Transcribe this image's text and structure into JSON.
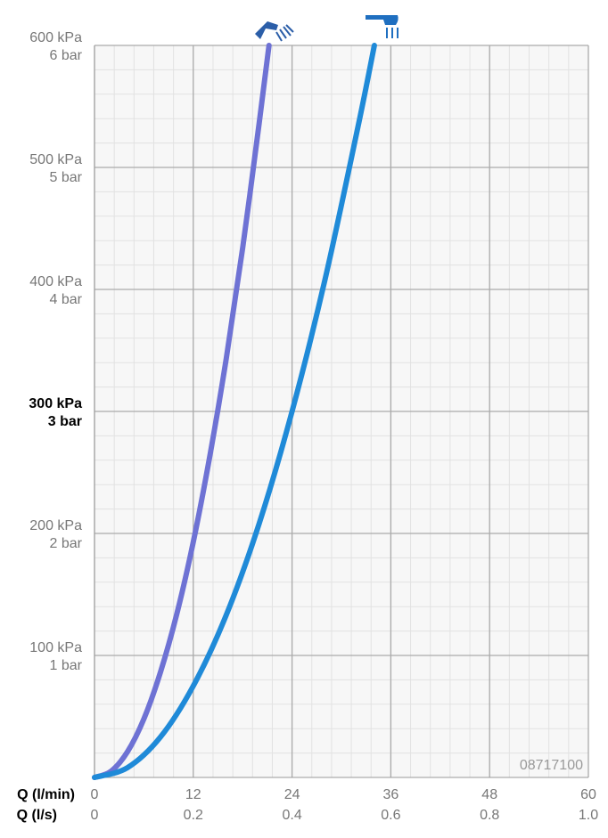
{
  "chart_data": {
    "type": "line",
    "x_label": "Q (l/min)",
    "x2_label": "Q (l/s)",
    "annotation": "08717100",
    "xlim": [
      0,
      60
    ],
    "xticks": [
      0,
      12,
      24,
      36,
      48,
      60
    ],
    "x2lim": [
      0,
      1
    ],
    "x2ticks": [
      0,
      0.2,
      0.4,
      0.6,
      0.8,
      {
        "value": 1,
        "label": "1.0"
      }
    ],
    "ylim": [
      0,
      600
    ],
    "yticks": [
      {
        "value": 100,
        "label": "100 kPa"
      },
      {
        "value": 200,
        "label": "200 kPa"
      },
      {
        "value": 300,
        "label": "300 kPa"
      },
      {
        "value": 400,
        "label": "400 kPa"
      },
      {
        "value": 500,
        "label": "500 kPa"
      },
      {
        "value": 600,
        "label": "600 kPa"
      }
    ],
    "ybar_ticks": [
      {
        "value": 100,
        "label": "1 bar"
      },
      {
        "value": 200,
        "label": "2 bar"
      },
      {
        "value": 300,
        "label": "3 bar"
      },
      {
        "value": 400,
        "label": "4 bar"
      },
      {
        "value": 500,
        "label": "5 bar"
      },
      {
        "value": 600,
        "label": "6 bar"
      }
    ],
    "bold_tick": 300,
    "grid": true,
    "series": [
      {
        "color": "#6e72d4",
        "x": [
          0,
          2,
          4,
          6,
          8,
          10,
          12,
          14,
          16,
          18,
          20,
          21.2
        ],
        "values": [
          0,
          5,
          21,
          48,
          86,
          134,
          193,
          263,
          343,
          434,
          536,
          600
        ]
      },
      {
        "color": "#1f8ad8",
        "x": [
          0,
          4,
          8,
          12,
          16,
          20,
          24,
          28,
          32,
          34
        ],
        "values": [
          0,
          8,
          33,
          75,
          133,
          208,
          300,
          408,
          533,
          600
        ]
      }
    ]
  }
}
